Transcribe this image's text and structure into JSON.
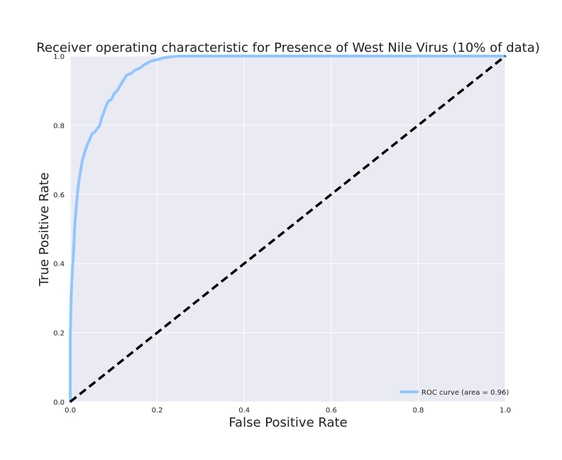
{
  "chart_data": {
    "type": "line",
    "title": "Receiver operating characteristic for Presence of West Nile Virus (10% of data)",
    "xlabel": "False Positive Rate",
    "ylabel": "True Positive Rate",
    "xlim": [
      0.0,
      1.0
    ],
    "ylim": [
      0.0,
      1.0
    ],
    "xticks": [
      "0.0",
      "0.2",
      "0.4",
      "0.6",
      "0.8",
      "1.0"
    ],
    "yticks": [
      "0.0",
      "0.2",
      "0.4",
      "0.6",
      "0.8",
      "1.0"
    ],
    "grid": true,
    "legend_position": "lower-right",
    "series": [
      {
        "name": "ROC curve (area = 0.96)",
        "color": "#92c6ff",
        "style": "solid",
        "x": [
          0.0,
          0.0,
          0.002,
          0.004,
          0.006,
          0.008,
          0.01,
          0.012,
          0.015,
          0.018,
          0.02,
          0.024,
          0.028,
          0.033,
          0.038,
          0.045,
          0.05,
          0.056,
          0.062,
          0.068,
          0.072,
          0.078,
          0.082,
          0.088,
          0.095,
          0.1,
          0.108,
          0.115,
          0.122,
          0.13,
          0.14,
          0.15,
          0.16,
          0.17,
          0.185,
          0.2,
          0.215,
          0.23,
          0.25,
          0.27,
          0.28,
          0.4,
          0.6,
          0.8,
          1.0
        ],
        "y": [
          0.0,
          0.18,
          0.3,
          0.36,
          0.4,
          0.44,
          0.5,
          0.54,
          0.58,
          0.62,
          0.64,
          0.67,
          0.7,
          0.72,
          0.74,
          0.76,
          0.775,
          0.78,
          0.79,
          0.8,
          0.82,
          0.84,
          0.855,
          0.87,
          0.875,
          0.89,
          0.9,
          0.915,
          0.93,
          0.945,
          0.95,
          0.96,
          0.965,
          0.975,
          0.985,
          0.99,
          0.995,
          0.998,
          1.0,
          1.0,
          1.0,
          1.0,
          1.0,
          1.0,
          1.0
        ]
      },
      {
        "name": "",
        "color": "#000000",
        "style": "dashed",
        "x": [
          0.0,
          1.0
        ],
        "y": [
          0.0,
          1.0
        ]
      }
    ]
  }
}
